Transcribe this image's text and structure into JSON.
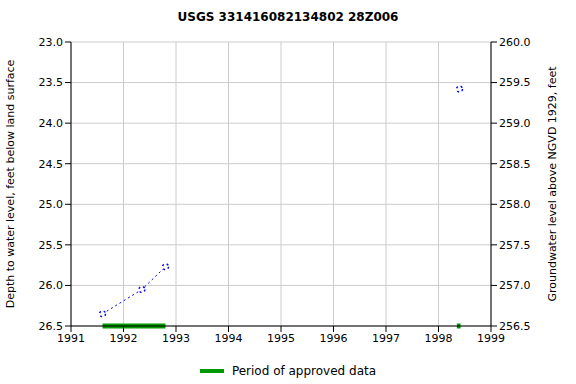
{
  "chart_data": {
    "type": "line",
    "title": "USGS 331416082134802 28Z006",
    "y_label": "Depth to water level, feet below land surface",
    "y2_label": "Groundwater level above NGVD 1929, feet",
    "x": [
      1991.6,
      1992.35,
      1992.8,
      1995.6,
      1998.4
    ],
    "values": [
      26.35,
      26.05,
      25.77,
      null,
      23.58
    ],
    "color": "#0000ff",
    "marker": "circle",
    "line_style": "dotted",
    "grid": true,
    "xlim": [
      1991,
      1999
    ],
    "xticks": [
      1991,
      1992,
      1993,
      1994,
      1995,
      1996,
      1997,
      1998,
      1999
    ],
    "ylim": [
      26.5,
      23
    ],
    "yticks": [
      {
        "value": 23,
        "label": "23.0"
      },
      {
        "value": 23.5,
        "label": "23.5"
      },
      {
        "value": 24,
        "label": "24.0"
      },
      {
        "value": 24.5,
        "label": "24.5"
      },
      {
        "value": 25,
        "label": "25.0"
      },
      {
        "value": 25.5,
        "label": "25.5"
      },
      {
        "value": 26,
        "label": "26.0"
      },
      {
        "value": 26.5,
        "label": "26.5"
      }
    ],
    "y2lim": [
      256.5,
      260
    ],
    "y2ticks": [
      {
        "value": 256.5,
        "label": "256.5"
      },
      {
        "value": 257,
        "label": "257.0"
      },
      {
        "value": 257.5,
        "label": "257.5"
      },
      {
        "value": 258,
        "label": "258.0"
      },
      {
        "value": 258.5,
        "label": "258.5"
      },
      {
        "value": 259,
        "label": "259.0"
      },
      {
        "value": 259.5,
        "label": "259.5"
      },
      {
        "value": 260,
        "label": "260.0"
      }
    ],
    "approved_periods": {
      "name": "Period of approved data",
      "color": "#009900",
      "ranges": [
        [
          1991.6,
          1992.8
        ],
        [
          1998.35,
          1998.42
        ]
      ]
    }
  }
}
